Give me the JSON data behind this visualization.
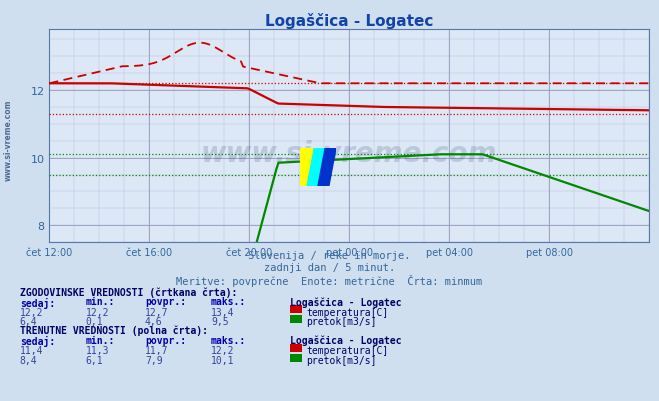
{
  "title": "Logaščica - Logatec",
  "bg_color": "#d0dff0",
  "plot_bg_color": "#dce8f5",
  "title_color": "#1144aa",
  "grid_color": "#9999bb",
  "grid_color_minor": "#bbbbdd",
  "x_labels": [
    "čet 12:00",
    "čet 16:00",
    "čet 20:00",
    "pet 00:00",
    "pet 04:00",
    "pet 08:00"
  ],
  "x_ticks_idx": [
    0,
    48,
    96,
    144,
    192,
    240
  ],
  "n_points": 289,
  "y_min": 7.5,
  "y_max": 13.8,
  "y_ticks": [
    8,
    10,
    12
  ],
  "subtitle_color": "#336699",
  "subtitle1": "Slovenija / reke in morje.",
  "subtitle2": "zadnji dan / 5 minut.",
  "subtitle3": "Meritve: povprečne  Enote: metrične  Črta: minmum",
  "watermark_text": "www.si-vreme.com",
  "watermark_color": "#1a3a6a",
  "axis_label_color": "#336699",
  "table_header_color": "#000066",
  "table_col_color": "#0000aa",
  "table_val_color": "#334499",
  "red_color": "#cc0000",
  "green_color": "#008800",
  "temp_hist_min": 12.2,
  "temp_hist_max": 13.4,
  "temp_hist_avg": 12.7,
  "temp_hist_curr": 12.2,
  "temp_curr_min": 11.3,
  "temp_curr_max": 12.2,
  "temp_curr_avg": 11.7,
  "temp_curr_curr": 11.4,
  "flow_hist_min": 0.1,
  "flow_hist_max": 9.5,
  "flow_hist_avg": 4.6,
  "flow_hist_curr": 6.4,
  "flow_curr_min": 6.1,
  "flow_curr_max": 10.1,
  "flow_curr_avg": 7.9,
  "flow_curr_curr": 8.4
}
